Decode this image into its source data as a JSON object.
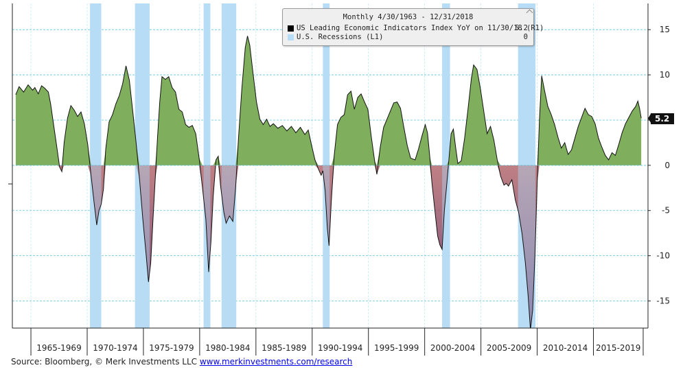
{
  "chart_data": {
    "type": "area",
    "frequency_title": "Monthly 4/30/1963 - 12/31/2018",
    "series": [
      {
        "name": "US Leading Economic Indicators Index YoY on 11/30/18 (R1)",
        "legend_value": "5.2",
        "color": "#000000",
        "points": [
          [
            1963.3,
            7.8
          ],
          [
            1963.6,
            8.7
          ],
          [
            1964.0,
            8.1
          ],
          [
            1964.4,
            8.9
          ],
          [
            1964.8,
            8.3
          ],
          [
            1965.0,
            8.6
          ],
          [
            1965.3,
            7.9
          ],
          [
            1965.6,
            8.8
          ],
          [
            1965.9,
            8.5
          ],
          [
            1966.2,
            8.1
          ],
          [
            1966.4,
            6.8
          ],
          [
            1966.7,
            4.2
          ],
          [
            1967.0,
            1.6
          ],
          [
            1967.2,
            -0.2
          ],
          [
            1967.4,
            -0.7
          ],
          [
            1967.6,
            2.5
          ],
          [
            1967.9,
            5.2
          ],
          [
            1968.2,
            6.6
          ],
          [
            1968.5,
            6.1
          ],
          [
            1968.8,
            5.4
          ],
          [
            1969.1,
            5.9
          ],
          [
            1969.4,
            4.6
          ],
          [
            1969.7,
            2.3
          ],
          [
            1970.0,
            -1.2
          ],
          [
            1970.3,
            -4.5
          ],
          [
            1970.5,
            -6.6
          ],
          [
            1970.7,
            -5.0
          ],
          [
            1970.9,
            -4.3
          ],
          [
            1971.1,
            -2.6
          ],
          [
            1971.3,
            1.8
          ],
          [
            1971.6,
            4.8
          ],
          [
            1971.9,
            5.6
          ],
          [
            1972.2,
            6.8
          ],
          [
            1972.5,
            7.7
          ],
          [
            1972.8,
            9.0
          ],
          [
            1973.1,
            11.0
          ],
          [
            1973.4,
            9.4
          ],
          [
            1973.7,
            6.0
          ],
          [
            1974.0,
            2.5
          ],
          [
            1974.3,
            -1.5
          ],
          [
            1974.6,
            -6.0
          ],
          [
            1974.9,
            -10.0
          ],
          [
            1975.1,
            -12.9
          ],
          [
            1975.3,
            -10.8
          ],
          [
            1975.5,
            -6.0
          ],
          [
            1975.7,
            -1.5
          ],
          [
            1975.9,
            3.0
          ],
          [
            1976.1,
            7.0
          ],
          [
            1976.3,
            9.8
          ],
          [
            1976.6,
            9.5
          ],
          [
            1976.9,
            9.8
          ],
          [
            1977.2,
            8.6
          ],
          [
            1977.5,
            8.1
          ],
          [
            1977.8,
            6.2
          ],
          [
            1978.1,
            5.9
          ],
          [
            1978.4,
            4.5
          ],
          [
            1978.7,
            4.2
          ],
          [
            1979.0,
            4.4
          ],
          [
            1979.3,
            3.5
          ],
          [
            1979.6,
            0.8
          ],
          [
            1979.9,
            -2.5
          ],
          [
            1980.2,
            -6.0
          ],
          [
            1980.45,
            -11.8
          ],
          [
            1980.65,
            -8.5
          ],
          [
            1980.85,
            -3.5
          ],
          [
            1981.1,
            0.6
          ],
          [
            1981.3,
            1.0
          ],
          [
            1981.5,
            -2.2
          ],
          [
            1981.8,
            -5.2
          ],
          [
            1982.0,
            -6.4
          ],
          [
            1982.3,
            -5.6
          ],
          [
            1982.6,
            -6.2
          ],
          [
            1982.85,
            -2.4
          ],
          [
            1983.1,
            3.0
          ],
          [
            1983.4,
            8.5
          ],
          [
            1983.7,
            13.0
          ],
          [
            1983.9,
            14.3
          ],
          [
            1984.1,
            13.3
          ],
          [
            1984.4,
            10.1
          ],
          [
            1984.7,
            7.0
          ],
          [
            1985.0,
            5.1
          ],
          [
            1985.3,
            4.5
          ],
          [
            1985.6,
            5.1
          ],
          [
            1985.9,
            4.3
          ],
          [
            1986.2,
            4.6
          ],
          [
            1986.6,
            4.1
          ],
          [
            1987.0,
            4.4
          ],
          [
            1987.4,
            3.8
          ],
          [
            1987.8,
            4.3
          ],
          [
            1988.2,
            3.6
          ],
          [
            1988.6,
            4.2
          ],
          [
            1989.0,
            3.4
          ],
          [
            1989.3,
            3.9
          ],
          [
            1989.6,
            2.2
          ],
          [
            1989.9,
            0.6
          ],
          [
            1990.2,
            -0.4
          ],
          [
            1990.45,
            -1.1
          ],
          [
            1990.6,
            -0.6
          ],
          [
            1990.8,
            -2.8
          ],
          [
            1991.0,
            -7.0
          ],
          [
            1991.15,
            -8.9
          ],
          [
            1991.35,
            -4.0
          ],
          [
            1991.6,
            1.0
          ],
          [
            1991.9,
            4.5
          ],
          [
            1992.2,
            5.3
          ],
          [
            1992.5,
            5.6
          ],
          [
            1992.8,
            7.8
          ],
          [
            1993.1,
            8.2
          ],
          [
            1993.4,
            6.2
          ],
          [
            1993.7,
            7.5
          ],
          [
            1994.0,
            7.9
          ],
          [
            1994.3,
            7.0
          ],
          [
            1994.6,
            6.2
          ],
          [
            1994.9,
            3.2
          ],
          [
            1995.2,
            0.5
          ],
          [
            1995.4,
            -1.0
          ],
          [
            1995.7,
            2.0
          ],
          [
            1996.0,
            4.2
          ],
          [
            1996.3,
            5.1
          ],
          [
            1996.6,
            6.0
          ],
          [
            1996.9,
            6.9
          ],
          [
            1997.2,
            7.0
          ],
          [
            1997.5,
            6.3
          ],
          [
            1997.8,
            4.2
          ],
          [
            1998.1,
            2.2
          ],
          [
            1998.4,
            0.8
          ],
          [
            1998.8,
            0.6
          ],
          [
            1999.1,
            1.8
          ],
          [
            1999.4,
            3.2
          ],
          [
            1999.7,
            4.5
          ],
          [
            1999.9,
            3.6
          ],
          [
            2000.1,
            1.0
          ],
          [
            2000.3,
            -2.0
          ],
          [
            2000.6,
            -5.5
          ],
          [
            2000.8,
            -7.8
          ],
          [
            2001.0,
            -8.8
          ],
          [
            2001.2,
            -9.3
          ],
          [
            2001.4,
            -5.0
          ],
          [
            2001.6,
            -2.3
          ],
          [
            2001.8,
            0.6
          ],
          [
            2002.0,
            3.5
          ],
          [
            2002.2,
            4.0
          ],
          [
            2002.4,
            2.0
          ],
          [
            2002.6,
            0.2
          ],
          [
            2002.9,
            0.5
          ],
          [
            2003.2,
            3.0
          ],
          [
            2003.5,
            6.2
          ],
          [
            2003.8,
            9.6
          ],
          [
            2004.0,
            11.1
          ],
          [
            2004.3,
            10.6
          ],
          [
            2004.6,
            8.5
          ],
          [
            2004.9,
            6.0
          ],
          [
            2005.2,
            3.5
          ],
          [
            2005.5,
            4.3
          ],
          [
            2005.8,
            2.8
          ],
          [
            2006.1,
            0.6
          ],
          [
            2006.4,
            -1.2
          ],
          [
            2006.7,
            -2.2
          ],
          [
            2006.9,
            -2.0
          ],
          [
            2007.1,
            -2.3
          ],
          [
            2007.4,
            -1.6
          ],
          [
            2007.7,
            -3.8
          ],
          [
            2008.0,
            -5.2
          ],
          [
            2008.3,
            -7.5
          ],
          [
            2008.6,
            -10.8
          ],
          [
            2008.85,
            -14.5
          ],
          [
            2009.05,
            -18.2
          ],
          [
            2009.25,
            -16.0
          ],
          [
            2009.45,
            -10.0
          ],
          [
            2009.65,
            -2.0
          ],
          [
            2009.85,
            5.0
          ],
          [
            2010.05,
            9.9
          ],
          [
            2010.3,
            8.3
          ],
          [
            2010.6,
            6.5
          ],
          [
            2010.9,
            5.6
          ],
          [
            2011.2,
            4.5
          ],
          [
            2011.5,
            3.1
          ],
          [
            2011.8,
            1.9
          ],
          [
            2012.1,
            2.5
          ],
          [
            2012.4,
            1.2
          ],
          [
            2012.7,
            1.7
          ],
          [
            2013.0,
            3.0
          ],
          [
            2013.3,
            4.3
          ],
          [
            2013.6,
            5.3
          ],
          [
            2013.9,
            6.3
          ],
          [
            2014.2,
            5.6
          ],
          [
            2014.5,
            5.4
          ],
          [
            2014.8,
            4.6
          ],
          [
            2015.1,
            3.0
          ],
          [
            2015.4,
            2.0
          ],
          [
            2015.7,
            1.1
          ],
          [
            2016.0,
            0.6
          ],
          [
            2016.3,
            1.4
          ],
          [
            2016.6,
            1.1
          ],
          [
            2016.9,
            2.3
          ],
          [
            2017.2,
            3.6
          ],
          [
            2017.5,
            4.6
          ],
          [
            2017.8,
            5.3
          ],
          [
            2018.1,
            6.0
          ],
          [
            2018.4,
            6.5
          ],
          [
            2018.6,
            7.1
          ],
          [
            2018.75,
            6.3
          ],
          [
            2018.9,
            5.2
          ]
        ]
      },
      {
        "name": "U.S. Recessions (L1)",
        "legend_value": "0",
        "color": "#b7dcf5",
        "periods": [
          [
            1969.9,
            1970.9
          ],
          [
            1973.9,
            1975.2
          ],
          [
            1980.0,
            1980.6
          ],
          [
            1981.6,
            1982.9
          ],
          [
            1990.6,
            1991.2
          ],
          [
            2001.2,
            2001.9
          ],
          [
            2007.95,
            2009.5
          ]
        ]
      }
    ],
    "last_value_label": "5.2",
    "xlim": [
      1963.0,
      2019.5
    ],
    "ylim": [
      -18.0,
      17.9
    ],
    "y_ticks": [
      {
        "value": 15,
        "label": "15"
      },
      {
        "value": 10,
        "label": "10"
      },
      {
        "value": 5,
        "label": "5"
      },
      {
        "value": 0,
        "label": "0"
      },
      {
        "value": -5,
        "label": "-5"
      },
      {
        "value": -10,
        "label": "-10"
      },
      {
        "value": -15,
        "label": "-15"
      }
    ],
    "x_periods": [
      {
        "start": 1964.65,
        "end": 1969.65,
        "label": "1965-1969"
      },
      {
        "start": 1969.65,
        "end": 1974.65,
        "label": "1970-1974"
      },
      {
        "start": 1974.65,
        "end": 1979.65,
        "label": "1975-1979"
      },
      {
        "start": 1979.65,
        "end": 1984.65,
        "label": "1980-1984"
      },
      {
        "start": 1984.65,
        "end": 1989.65,
        "label": "1985-1989"
      },
      {
        "start": 1989.65,
        "end": 1994.65,
        "label": "1990-1994"
      },
      {
        "start": 1994.65,
        "end": 1999.65,
        "label": "1995-1999"
      },
      {
        "start": 1999.65,
        "end": 2004.65,
        "label": "2000-2004"
      },
      {
        "start": 2004.65,
        "end": 2009.65,
        "label": "2005-2009"
      },
      {
        "start": 2009.65,
        "end": 2014.65,
        "label": "2010-2014"
      },
      {
        "start": 2014.65,
        "end": 2019.65,
        "label": "2015-2019"
      }
    ],
    "colors": {
      "positive": "#7fae5c",
      "negative_outside_recession": "#c57370",
      "negative_in_recession": "#a79fcc",
      "line": "#111111",
      "gridline": "#59c6de"
    }
  },
  "footer": {
    "source_text": "Source: Bloomberg, © Merk Investments LLC ",
    "link_text": "www.merkinvestments.com/research"
  }
}
